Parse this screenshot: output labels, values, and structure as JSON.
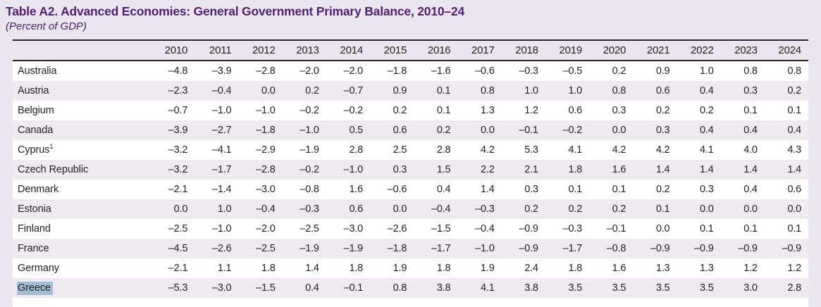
{
  "header": {
    "title": "Table A2. Advanced Economies: General Government Primary Balance, 2010–24",
    "subtitle": "(Percent of GDP)"
  },
  "colors": {
    "title_purple": "#4f2170",
    "page_background": "#eae5ee",
    "row_stripe": "#f1e9f1",
    "row_white": "#ffffff",
    "rule": "#29262b",
    "text": "#231f20",
    "selection_highlight": "#a3bdd3"
  },
  "table": {
    "unit_note": "Percent of GDP",
    "year_columns": [
      "2010",
      "2011",
      "2012",
      "2013",
      "2014",
      "2015",
      "2016",
      "2017",
      "2018",
      "2019",
      "2020",
      "2021",
      "2022",
      "2023",
      "2024"
    ],
    "rows": [
      {
        "country": "Australia",
        "sup": "",
        "highlighted": false,
        "values": [
          "–4.8",
          "–3.9",
          "–2.8",
          "–2.0",
          "–2.0",
          "–1.8",
          "–1.6",
          "–0.6",
          "–0.3",
          "–0.5",
          "0.2",
          "0.9",
          "1.0",
          "0.8",
          "0.8"
        ]
      },
      {
        "country": "Austria",
        "sup": "",
        "highlighted": false,
        "values": [
          "–2.3",
          "–0.4",
          "0.0",
          "0.2",
          "–0.7",
          "0.9",
          "0.1",
          "0.8",
          "1.0",
          "1.0",
          "0.8",
          "0.6",
          "0.4",
          "0.3",
          "0.2"
        ]
      },
      {
        "country": "Belgium",
        "sup": "",
        "highlighted": false,
        "values": [
          "–0.7",
          "–1.0",
          "–1.0",
          "–0.2",
          "–0.2",
          "0.2",
          "0.1",
          "1.3",
          "1.2",
          "0.6",
          "0.3",
          "0.2",
          "0.2",
          "0.1",
          "0.1"
        ]
      },
      {
        "country": "Canada",
        "sup": "",
        "highlighted": false,
        "values": [
          "–3.9",
          "–2.7",
          "–1.8",
          "–1.0",
          "0.5",
          "0.6",
          "0.2",
          "0.0",
          "–0.1",
          "–0.2",
          "0.0",
          "0.3",
          "0.4",
          "0.4",
          "0.4"
        ]
      },
      {
        "country": "Cyprus",
        "sup": "1",
        "highlighted": false,
        "values": [
          "–3.2",
          "–4.1",
          "–2.9",
          "–1.9",
          "2.8",
          "2.5",
          "2.8",
          "4.2",
          "5.3",
          "4.1",
          "4.2",
          "4.2",
          "4.1",
          "4.0",
          "4.3"
        ]
      },
      {
        "country": "Czech Republic",
        "sup": "",
        "highlighted": false,
        "values": [
          "–3.2",
          "–1.7",
          "–2.8",
          "–0.2",
          "–1.0",
          "0.3",
          "1.5",
          "2.2",
          "2.1",
          "1.8",
          "1.6",
          "1.4",
          "1.4",
          "1.4",
          "1.4"
        ]
      },
      {
        "country": "Denmark",
        "sup": "",
        "highlighted": false,
        "values": [
          "–2.1",
          "–1.4",
          "–3.0",
          "–0.8",
          "1.6",
          "–0.6",
          "0.4",
          "1.4",
          "0.3",
          "0.1",
          "0.1",
          "0.2",
          "0.3",
          "0.4",
          "0.6"
        ]
      },
      {
        "country": "Estonia",
        "sup": "",
        "highlighted": false,
        "values": [
          "0.0",
          "1.0",
          "–0.4",
          "–0.3",
          "0.6",
          "0.0",
          "–0.4",
          "–0.3",
          "0.2",
          "0.2",
          "0.2",
          "0.1",
          "0.0",
          "0.0",
          "0.0"
        ]
      },
      {
        "country": "Finland",
        "sup": "",
        "highlighted": false,
        "values": [
          "–2.5",
          "–1.0",
          "–2.0",
          "–2.5",
          "–3.0",
          "–2.6",
          "–1.5",
          "–0.4",
          "–0.9",
          "–0.3",
          "–0.1",
          "0.0",
          "0.1",
          "0.1",
          "0.1"
        ]
      },
      {
        "country": "France",
        "sup": "",
        "highlighted": false,
        "values": [
          "–4.5",
          "–2.6",
          "–2.5",
          "–1.9",
          "–1.9",
          "–1.8",
          "–1.7",
          "–1.0",
          "–0.9",
          "–1.7",
          "–0.8",
          "–0.9",
          "–0.9",
          "–0.9",
          "–0.9"
        ]
      },
      {
        "country": "Germany",
        "sup": "",
        "highlighted": false,
        "values": [
          "–2.1",
          "1.1",
          "1.8",
          "1.4",
          "1.8",
          "1.9",
          "1.8",
          "1.9",
          "2.4",
          "1.8",
          "1.6",
          "1.3",
          "1.3",
          "1.2",
          "1.2"
        ]
      },
      {
        "country": "Greece",
        "sup": "",
        "highlighted": true,
        "values": [
          "–5.3",
          "–3.0",
          "–1.5",
          "0.4",
          "–0.1",
          "0.8",
          "3.8",
          "4.1",
          "3.8",
          "3.5",
          "3.5",
          "3.5",
          "3.5",
          "3.0",
          "2.8"
        ]
      }
    ]
  }
}
